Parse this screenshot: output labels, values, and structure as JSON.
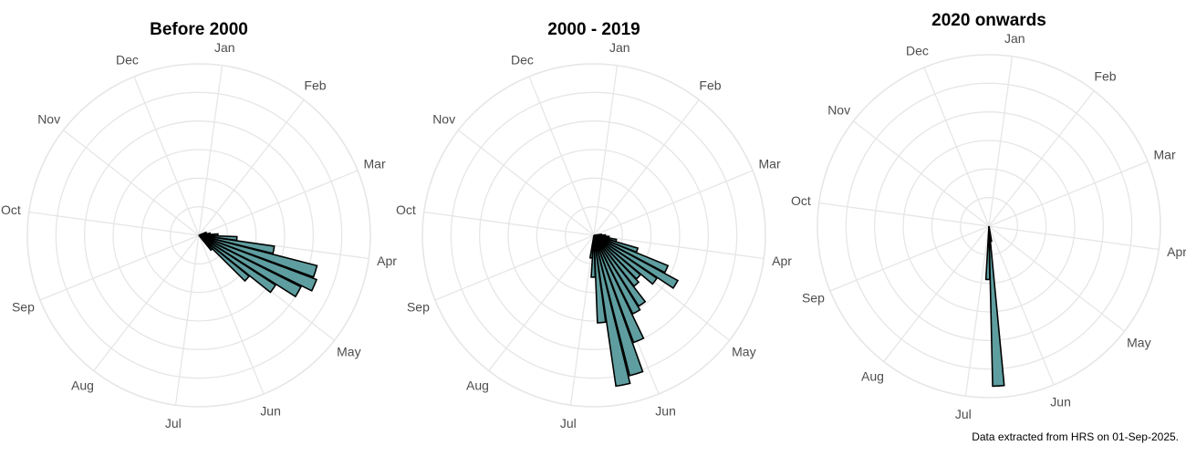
{
  "caption": "Data extracted from HRS on 01-Sep-2025.",
  "colors": {
    "bar_fill": "#5f9ea0",
    "bar_stroke": "#000000",
    "grid": "#e6e6e6",
    "label": "#4d4d4d"
  },
  "chart_data": [
    {
      "type": "bar",
      "coord": "polar",
      "title": "Before 2000",
      "month_labels": [
        "Jan",
        "Feb",
        "Mar",
        "Apr",
        "May",
        "Jun",
        "Jul",
        "Aug",
        "Sep",
        "Oct",
        "Nov",
        "Dec"
      ],
      "grid": true,
      "values": [
        0.2,
        0.2,
        0.3,
        0.5,
        1.0,
        2.0,
        3.2,
        3.3,
        3.0,
        2.4,
        1.7,
        0.5
      ]
    },
    {
      "type": "bar",
      "coord": "polar",
      "title": "2000 - 2019",
      "month_labels": [
        "Jan",
        "Feb",
        "Mar",
        "Apr",
        "May",
        "Jun",
        "Jul",
        "Aug",
        "Sep",
        "Oct",
        "Nov",
        "Dec"
      ],
      "grid": true,
      "values": [
        0.2,
        0.3,
        0.4,
        0.6,
        1.2,
        2.1,
        2.5,
        2.0,
        1.6,
        1.7,
        2.2,
        2.3,
        3.0,
        3.8,
        4.0,
        2.3,
        1.1,
        0.6
      ]
    },
    {
      "type": "bar",
      "coord": "polar",
      "title": "2020 onwards",
      "month_labels": [
        "Jan",
        "Feb",
        "Mar",
        "Apr",
        "May",
        "Jun",
        "Jul",
        "Aug",
        "Sep",
        "Oct",
        "Nov",
        "Dec"
      ],
      "grid": true,
      "values": [
        0.4,
        4.2,
        1.4
      ]
    }
  ]
}
